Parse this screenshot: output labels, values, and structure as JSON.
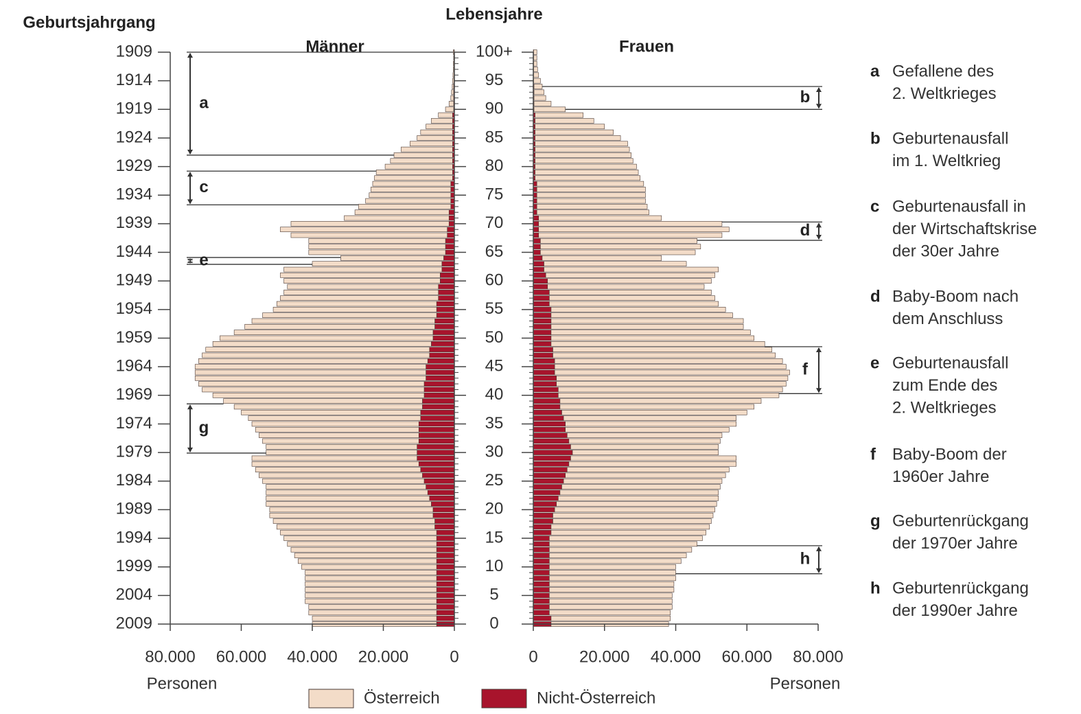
{
  "chart_data": {
    "type": "population-pyramid",
    "ylabel": "Lebensjahre",
    "y2label": "Geburtsjahrgang",
    "x": [
      0,
      1,
      2,
      3,
      4,
      5,
      6,
      7,
      8,
      9,
      10,
      11,
      12,
      13,
      14,
      15,
      16,
      17,
      18,
      19,
      20,
      21,
      22,
      23,
      24,
      25,
      26,
      27,
      28,
      29,
      30,
      31,
      32,
      33,
      34,
      35,
      36,
      37,
      38,
      39,
      40,
      41,
      42,
      43,
      44,
      45,
      46,
      47,
      48,
      49,
      50,
      51,
      52,
      53,
      54,
      55,
      56,
      57,
      58,
      59,
      60,
      61,
      62,
      63,
      64,
      65,
      66,
      67,
      68,
      69,
      70,
      71,
      72,
      73,
      74,
      75,
      76,
      77,
      78,
      79,
      80,
      81,
      82,
      83,
      84,
      85,
      86,
      87,
      88,
      89,
      90,
      91,
      92,
      93,
      94,
      95,
      96,
      97,
      98,
      99,
      100
    ],
    "ylim": [
      0,
      100
    ],
    "yticks": [
      0,
      5,
      10,
      15,
      20,
      25,
      30,
      35,
      40,
      45,
      50,
      55,
      60,
      65,
      70,
      75,
      80,
      85,
      90,
      95,
      {
        "value": 100,
        "label": "100+"
      }
    ],
    "y2lim": [
      2009,
      1909
    ],
    "y2ticks": [
      1909,
      1914,
      1919,
      1924,
      1929,
      1934,
      1939,
      1944,
      1949,
      1954,
      1959,
      1964,
      1969,
      1974,
      1979,
      1984,
      1989,
      1994,
      1999,
      2004,
      2009
    ],
    "xlim": [
      0,
      80000
    ],
    "xticks": [
      0,
      {
        "value": 20000,
        "label": "20.000"
      },
      {
        "value": 40000,
        "label": "40.000"
      },
      {
        "value": 60000,
        "label": "60.000"
      },
      {
        "value": 80000,
        "label": "80.000"
      }
    ],
    "xlabel": "Personen",
    "panels": [
      {
        "title": "Männer",
        "series": [
          {
            "name": "Nicht-Österreich",
            "color": "#a8142c",
            "values": [
              5000,
              5000,
              5000,
              5000,
              5000,
              5000,
              5000,
              5000,
              5000,
              5000,
              5000,
              5000,
              5000,
              5000,
              5000,
              5000,
              5000,
              5500,
              5500,
              6000,
              6000,
              6500,
              7000,
              7500,
              8000,
              8500,
              9000,
              9500,
              10000,
              10500,
              10500,
              10500,
              10000,
              10000,
              10000,
              10000,
              9500,
              9500,
              9000,
              9000,
              8500,
              8500,
              8500,
              8000,
              8000,
              8000,
              7500,
              7000,
              7000,
              6500,
              6000,
              6000,
              5500,
              5500,
              5000,
              5000,
              5000,
              4500,
              4500,
              4500,
              4000,
              4000,
              3500,
              3500,
              3000,
              2500,
              2500,
              2500,
              2000,
              2000,
              1500,
              1500,
              1500,
              1000,
              1000,
              1000,
              1000,
              1000,
              500,
              500,
              500,
              500,
              500,
              500,
              500,
              500,
              500,
              500,
              500,
              500,
              200,
              200,
              200,
              200,
              200,
              100,
              100,
              100,
              100,
              100,
              100
            ]
          },
          {
            "name": "Österreich",
            "color": "#f3dcc8",
            "values": [
              35000,
              35000,
              36000,
              36000,
              37000,
              37000,
              37000,
              37000,
              37000,
              37000,
              38000,
              39000,
              40000,
              41000,
              42000,
              43000,
              44000,
              44500,
              45500,
              46000,
              46000,
              46500,
              46000,
              45500,
              45000,
              45500,
              46000,
              46500,
              47000,
              46500,
              42500,
              42500,
              44000,
              45000,
              46000,
              47000,
              48500,
              50500,
              53000,
              56000,
              59500,
              62500,
              63500,
              65000,
              65000,
              65000,
              64500,
              64000,
              63000,
              61500,
              60000,
              56000,
              53500,
              51500,
              49000,
              46000,
              45000,
              44500,
              43500,
              42500,
              44000,
              45000,
              44500,
              36500,
              29000,
              38500,
              38500,
              38500,
              44000,
              47000,
              44500,
              29500,
              26500,
              26000,
              24000,
              23000,
              22500,
              22000,
              22000,
              21500,
              19000,
              17500,
              16500,
              14500,
              12000,
              10000,
              9000,
              7500,
              6000,
              4000,
              2300,
              1300,
              800,
              600,
              400,
              400,
              300,
              200,
              200,
              100,
              200
            ]
          }
        ],
        "annotations": [
          {
            "letter": "a",
            "from": 82,
            "to": 100
          },
          {
            "letter": "c",
            "from": 73.3,
            "to": 79.2
          },
          {
            "letter": "e",
            "from": 62.9,
            "to": 64.1
          },
          {
            "letter": "g",
            "from": 29.9,
            "to": 38.5
          }
        ]
      },
      {
        "title": "Frauen",
        "series": [
          {
            "name": "Nicht-Österreich",
            "color": "#a8142c",
            "values": [
              5000,
              5000,
              4500,
              4500,
              4500,
              4500,
              4500,
              4500,
              4500,
              4500,
              4500,
              4500,
              4500,
              4500,
              4500,
              4500,
              5000,
              5000,
              5500,
              5500,
              6000,
              6500,
              7000,
              7500,
              8000,
              8500,
              9000,
              9500,
              10000,
              10500,
              11000,
              10500,
              10000,
              9500,
              9000,
              9000,
              8500,
              8000,
              7500,
              7500,
              7000,
              7000,
              6500,
              6500,
              6000,
              6000,
              6000,
              5500,
              5500,
              5000,
              5000,
              5000,
              5000,
              5000,
              5000,
              5000,
              4500,
              4500,
              4500,
              4000,
              4000,
              3500,
              3000,
              3000,
              2500,
              2000,
              2000,
              2000,
              1500,
              1500,
              1500,
              1500,
              1000,
              1000,
              1000,
              1000,
              1000,
              1000,
              500,
              500,
              500,
              500,
              500,
              500,
              500,
              500,
              500,
              500,
              500,
              500,
              200,
              200,
              200,
              200,
              200,
              100,
              100,
              100,
              100,
              100,
              100
            ]
          },
          {
            "name": "Österreich",
            "color": "#f3dcc8",
            "values": [
              33000,
              33500,
              34000,
              34500,
              34500,
              34500,
              35000,
              35000,
              35500,
              35500,
              35500,
              37000,
              38500,
              40000,
              41500,
              43000,
              43500,
              44500,
              44500,
              45000,
              45000,
              45000,
              45000,
              44500,
              44500,
              44500,
              45000,
              45500,
              47000,
              46500,
              41000,
              41500,
              42500,
              43500,
              46000,
              48000,
              48500,
              52000,
              54500,
              56500,
              62000,
              63000,
              64500,
              65000,
              66000,
              65000,
              64000,
              62500,
              61500,
              60000,
              57000,
              56000,
              54000,
              54000,
              51000,
              49000,
              47500,
              46500,
              45500,
              44000,
              46000,
              47500,
              49000,
              40000,
              33500,
              43500,
              45000,
              44000,
              51500,
              53500,
              51500,
              34500,
              31500,
              31000,
              30500,
              30500,
              30500,
              30000,
              29500,
              29000,
              28500,
              27500,
              27000,
              26500,
              26000,
              24000,
              22000,
              19500,
              16500,
              13500,
              8800,
              4800,
              3300,
              2800,
              2300,
              1900,
              1400,
              1100,
              900,
              900,
              900
            ]
          }
        ],
        "annotations": [
          {
            "letter": "b",
            "from": 90,
            "to": 94
          },
          {
            "letter": "d",
            "from": 67.1,
            "to": 70.3
          },
          {
            "letter": "f",
            "from": 40.3,
            "to": 48.5
          },
          {
            "letter": "h",
            "from": 8.8,
            "to": 13.7
          }
        ]
      }
    ],
    "notes": [
      {
        "letter": "a",
        "lines": [
          "Gefallene des",
          "2. Weltkrieges"
        ]
      },
      {
        "letter": "b",
        "lines": [
          "Geburtenausfall",
          "im 1. Weltkrieg"
        ]
      },
      {
        "letter": "c",
        "lines": [
          "Geburtenausfall in",
          "der Wirtschaftskrise",
          "der 30er Jahre"
        ]
      },
      {
        "letter": "d",
        "lines": [
          "Baby-Boom nach",
          "dem Anschluss"
        ]
      },
      {
        "letter": "e",
        "lines": [
          "Geburtenausfall",
          "zum Ende des",
          "2. Weltkrieges"
        ]
      },
      {
        "letter": "f",
        "lines": [
          "Baby-Boom der",
          "1960er Jahre"
        ]
      },
      {
        "letter": "g",
        "lines": [
          "Geburtenrückgang",
          "der 1970er Jahre"
        ]
      },
      {
        "letter": "h",
        "lines": [
          "Geburtenrückgang",
          "der 1990er Jahre"
        ]
      }
    ]
  }
}
